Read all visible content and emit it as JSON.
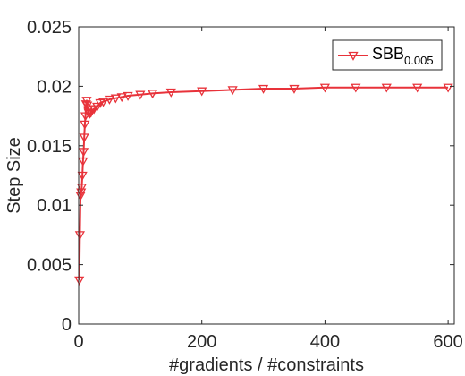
{
  "chart_data": {
    "type": "line",
    "xlabel": "#gradients / #constraints",
    "ylabel": "Step Size",
    "xlim": [
      0,
      610
    ],
    "ylim": [
      0,
      0.025
    ],
    "xticks": [
      0,
      200,
      400,
      600
    ],
    "xtick_labels": [
      "0",
      "200",
      "400",
      "600"
    ],
    "yticks": [
      0,
      0.005,
      0.01,
      0.015,
      0.02,
      0.025
    ],
    "ytick_labels": [
      "0",
      "0.005",
      "0.01",
      "0.015",
      "0.02",
      "0.025"
    ],
    "grid": false,
    "legend_position": "top-right",
    "colors": {
      "series": "#e8323a",
      "axis": "#262626"
    },
    "series": [
      {
        "name": "SBB",
        "name_subscript": "0.005",
        "marker": "triangle-down",
        "x": [
          1,
          2,
          3,
          4,
          5,
          6,
          7,
          8,
          9,
          10,
          11,
          12,
          13,
          14,
          15,
          16,
          17,
          18,
          20,
          22,
          25,
          30,
          35,
          40,
          50,
          60,
          70,
          80,
          100,
          120,
          150,
          200,
          250,
          300,
          350,
          400,
          450,
          500,
          550,
          600
        ],
        "y": [
          0.0037,
          0.0075,
          0.0108,
          0.0111,
          0.0115,
          0.0125,
          0.0137,
          0.0145,
          0.0157,
          0.0168,
          0.0175,
          0.0185,
          0.0188,
          0.0184,
          0.018,
          0.0178,
          0.0177,
          0.0177,
          0.0178,
          0.018,
          0.0181,
          0.0183,
          0.0186,
          0.0187,
          0.0189,
          0.019,
          0.0191,
          0.0192,
          0.0193,
          0.0194,
          0.0195,
          0.0196,
          0.0197,
          0.0198,
          0.0198,
          0.0199,
          0.0199,
          0.0199,
          0.0199,
          0.0199
        ]
      }
    ]
  }
}
